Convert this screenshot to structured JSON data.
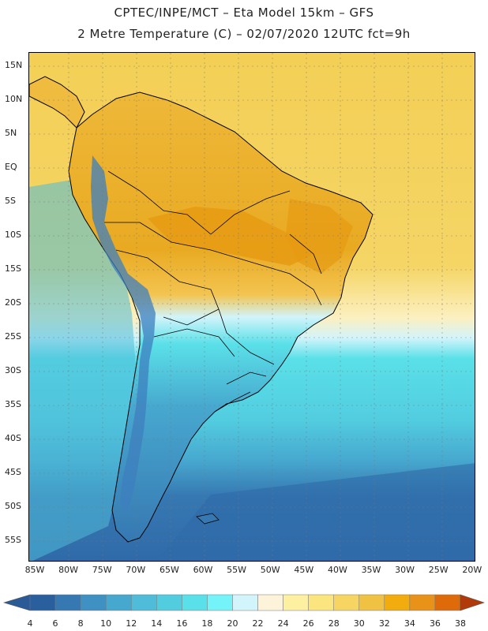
{
  "header": {
    "line1": "CPTEC/INPE/MCT –  Eta Model 15km – GFS",
    "line2": "2 Metre Temperature (C) – 02/07/2020 12UTC fct=9h"
  },
  "map": {
    "lat_labels": [
      "15N",
      "10N",
      "5N",
      "EQ",
      "5S",
      "10S",
      "15S",
      "20S",
      "25S",
      "30S",
      "35S",
      "40S",
      "45S",
      "50S",
      "55S"
    ],
    "lon_labels": [
      "85W",
      "80W",
      "75W",
      "70W",
      "65W",
      "60W",
      "55W",
      "50W",
      "45W",
      "40W",
      "35W",
      "30W",
      "25W",
      "20W"
    ],
    "colors": {
      "land_warm": "#f2c24a",
      "land_hot": "#e8a81c",
      "ocean_warm": "#f6d562",
      "ocean_cool": "#52cde0",
      "ocean_cold": "#2f6aa8",
      "andes_cold": "#3d7fbf",
      "border": "#000000"
    }
  },
  "colorbar": {
    "ticks": [
      "4",
      "6",
      "8",
      "10",
      "12",
      "14",
      "16",
      "18",
      "20",
      "22",
      "24",
      "26",
      "28",
      "30",
      "32",
      "34",
      "36",
      "38"
    ],
    "colors": [
      "#2a5f9e",
      "#3678b2",
      "#3f91c4",
      "#47a8cf",
      "#4fbcd9",
      "#52cde0",
      "#5ae0e8",
      "#74f4f8",
      "#d2f4fb",
      "#fcf3da",
      "#fdf0a0",
      "#fbe57e",
      "#f6d562",
      "#efc243",
      "#f2ac0d",
      "#e8921a",
      "#df6a0a",
      "#c6400a"
    ],
    "left_arrow_color": "#2b5b96",
    "right_arrow_color": "#b13a0a"
  }
}
